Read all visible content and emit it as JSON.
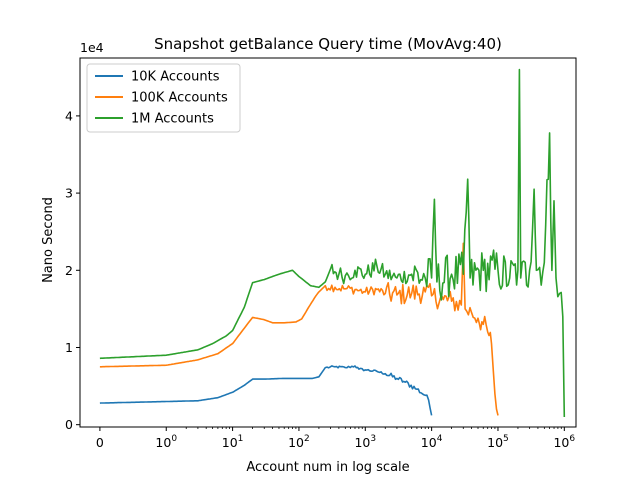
{
  "chart_data": {
    "type": "line",
    "title": "Snapshot getBalance Query time (MovAvg:40)",
    "xlabel": "Account num in log scale",
    "ylabel": "Nano Second",
    "y_offset_label": "1e4",
    "x_scale": "symlog",
    "xlim": [
      -0.3,
      1500000
    ],
    "ylim": [
      -0.03,
      4.75
    ],
    "y_ticks": [
      {
        "value": 0,
        "label": "0"
      },
      {
        "value": 1,
        "label": "1"
      },
      {
        "value": 2,
        "label": "2"
      },
      {
        "value": 3,
        "label": "3"
      },
      {
        "value": 4,
        "label": "4"
      }
    ],
    "x_ticks": [
      {
        "value": 0,
        "base": "0",
        "exp": ""
      },
      {
        "value": 1,
        "base": "10",
        "exp": "0"
      },
      {
        "value": 10,
        "base": "10",
        "exp": "1"
      },
      {
        "value": 100,
        "base": "10",
        "exp": "2"
      },
      {
        "value": 1000,
        "base": "10",
        "exp": "3"
      },
      {
        "value": 10000,
        "base": "10",
        "exp": "4"
      },
      {
        "value": 100000,
        "base": "10",
        "exp": "5"
      },
      {
        "value": 1000000,
        "base": "10",
        "exp": "6"
      }
    ],
    "grid": false,
    "legend_position": "top-left",
    "series": [
      {
        "name": "10K Accounts",
        "color": "#1f77b4",
        "points": [
          [
            0,
            0.28
          ],
          [
            1,
            0.3
          ],
          [
            3,
            0.31
          ],
          [
            6,
            0.35
          ],
          [
            10,
            0.42
          ],
          [
            15,
            0.51
          ],
          [
            20,
            0.59
          ],
          [
            30,
            0.59
          ],
          [
            60,
            0.6
          ],
          [
            120,
            0.6
          ],
          [
            160,
            0.6
          ],
          [
            200,
            0.62
          ],
          [
            250,
            0.74
          ],
          [
            350,
            0.75
          ],
          [
            500,
            0.74
          ],
          [
            700,
            0.76
          ],
          [
            800,
            0.72
          ],
          [
            1000,
            0.71
          ],
          [
            1500,
            0.69
          ],
          [
            2000,
            0.66
          ],
          [
            3000,
            0.6
          ],
          [
            4000,
            0.55
          ],
          [
            6000,
            0.46
          ],
          [
            8000,
            0.38
          ],
          [
            9000,
            0.32
          ],
          [
            10000,
            0.12
          ]
        ]
      },
      {
        "name": "100K Accounts",
        "color": "#ff7f0e",
        "points": [
          [
            0,
            0.75
          ],
          [
            1,
            0.77
          ],
          [
            3,
            0.84
          ],
          [
            6,
            0.92
          ],
          [
            10,
            1.05
          ],
          [
            15,
            1.25
          ],
          [
            20,
            1.39
          ],
          [
            30,
            1.36
          ],
          [
            40,
            1.32
          ],
          [
            60,
            1.32
          ],
          [
            90,
            1.33
          ],
          [
            110,
            1.37
          ],
          [
            140,
            1.52
          ],
          [
            180,
            1.67
          ],
          [
            200,
            1.72
          ],
          [
            250,
            1.8
          ],
          [
            350,
            1.78
          ],
          [
            500,
            1.76
          ],
          [
            700,
            1.75
          ],
          [
            1000,
            1.72
          ],
          [
            1500,
            1.75
          ],
          [
            2000,
            1.7
          ],
          [
            3000,
            1.68
          ],
          [
            5000,
            1.7
          ],
          [
            8000,
            1.72
          ],
          [
            10000,
            1.67
          ],
          [
            15000,
            1.62
          ],
          [
            20000,
            1.6
          ],
          [
            28000,
            1.55
          ],
          [
            30000,
            2.35
          ],
          [
            32000,
            1.5
          ],
          [
            40000,
            1.45
          ],
          [
            50000,
            1.38
          ],
          [
            60000,
            1.3
          ],
          [
            70000,
            1.2
          ],
          [
            80000,
            1.05
          ],
          [
            85000,
            0.7
          ],
          [
            90000,
            0.4
          ],
          [
            95000,
            0.2
          ],
          [
            100000,
            0.12
          ]
        ]
      },
      {
        "name": "1M Accounts",
        "color": "#2ca02c",
        "points": [
          [
            0,
            0.86
          ],
          [
            1,
            0.9
          ],
          [
            3,
            0.97
          ],
          [
            5,
            1.05
          ],
          [
            8,
            1.15
          ],
          [
            10,
            1.22
          ],
          [
            15,
            1.52
          ],
          [
            20,
            1.84
          ],
          [
            30,
            1.88
          ],
          [
            50,
            1.95
          ],
          [
            80,
            2.0
          ],
          [
            100,
            1.92
          ],
          [
            150,
            1.8
          ],
          [
            200,
            1.78
          ],
          [
            250,
            1.85
          ],
          [
            300,
            2.02
          ],
          [
            400,
            1.95
          ],
          [
            500,
            1.93
          ],
          [
            700,
            2.0
          ],
          [
            1000,
            1.95
          ],
          [
            1500,
            2.05
          ],
          [
            2000,
            1.95
          ],
          [
            3000,
            1.9
          ],
          [
            5000,
            1.95
          ],
          [
            8000,
            1.9
          ],
          [
            10000,
            1.9
          ],
          [
            11000,
            2.92
          ],
          [
            12000,
            1.85
          ],
          [
            20000,
            1.95
          ],
          [
            30000,
            1.95
          ],
          [
            35000,
            3.18
          ],
          [
            38000,
            1.9
          ],
          [
            60000,
            2.0
          ],
          [
            100000,
            2.0
          ],
          [
            150000,
            1.9
          ],
          [
            200000,
            2.0
          ],
          [
            210000,
            4.6
          ],
          [
            220000,
            1.9
          ],
          [
            300000,
            2.0
          ],
          [
            350000,
            3.05
          ],
          [
            380000,
            2.0
          ],
          [
            500000,
            2.1
          ],
          [
            600000,
            3.78
          ],
          [
            650000,
            2.0
          ],
          [
            700000,
            2.9
          ],
          [
            750000,
            1.9
          ],
          [
            850000,
            1.7
          ],
          [
            950000,
            1.4
          ],
          [
            1000000,
            0.1
          ]
        ]
      }
    ]
  }
}
